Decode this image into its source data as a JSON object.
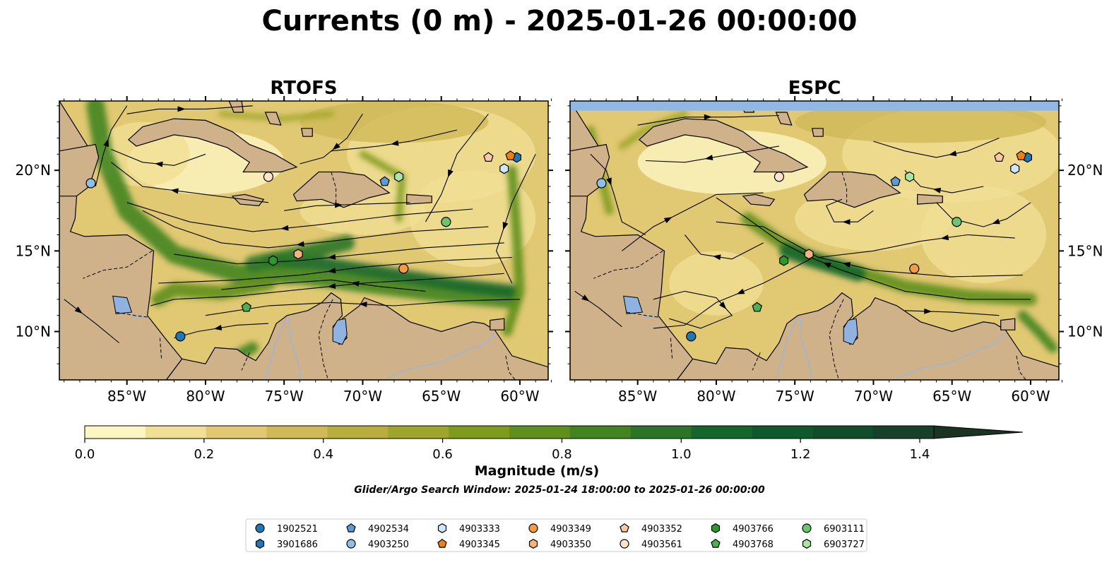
{
  "figure": {
    "title": "Currents (0 m) - 2025-01-26 00:00:00",
    "search_window": "Glider/Argo Search Window: 2025-01-24 18:00:00 to 2025-01-26 00:00:00"
  },
  "colors": {
    "land": "#cfb28a",
    "lake": "#8fb2e0",
    "river": "#9bb6d8",
    "missing_data": "#91b8e3",
    "streamline": "#000000",
    "magnitude_scale": [
      "#fdf6c2",
      "#f0df94",
      "#e1c873",
      "#d0b957",
      "#b9ad3f",
      "#9da62a",
      "#7f9b1d",
      "#5f8f1c",
      "#428420",
      "#2a7527",
      "#15662b",
      "#0e5a2c",
      "#124d2b",
      "#17402a",
      "#1b3322"
    ]
  },
  "map": {
    "extent": {
      "lon_min": -89.3,
      "lon_max": -58.2,
      "lat_min": 7.0,
      "lat_max": 24.3
    },
    "lon_ticks": [
      {
        "value": -85,
        "label": "85°W"
      },
      {
        "value": -80,
        "label": "80°W"
      },
      {
        "value": -75,
        "label": "75°W"
      },
      {
        "value": -70,
        "label": "70°W"
      },
      {
        "value": -65,
        "label": "65°W"
      },
      {
        "value": -60,
        "label": "60°W"
      }
    ],
    "lat_ticks": [
      {
        "value": 10,
        "label": "10°N"
      },
      {
        "value": 15,
        "label": "15°N"
      },
      {
        "value": 20,
        "label": "20°N"
      }
    ]
  },
  "panels": [
    {
      "id": "rtofs",
      "title": "RTOFS",
      "model": "rtofs"
    },
    {
      "id": "espc",
      "title": "ESPC",
      "model": "espc",
      "missing_band_lat_min": 23.7
    }
  ],
  "colorbar": {
    "label": "Magnitude (m/s)",
    "min": 0.0,
    "max": 1.5,
    "extend": "max",
    "ticks": [
      {
        "value": 0.0,
        "label": "0.0"
      },
      {
        "value": 0.2,
        "label": "0.2"
      },
      {
        "value": 0.4,
        "label": "0.4"
      },
      {
        "value": 0.6,
        "label": "0.6"
      },
      {
        "value": 0.8,
        "label": "0.8"
      },
      {
        "value": 1.0,
        "label": "1.0"
      },
      {
        "value": 1.2,
        "label": "1.2"
      },
      {
        "value": 1.4,
        "label": "1.4"
      }
    ]
  },
  "platforms": [
    {
      "id": "1902521",
      "marker": "circle",
      "color": "#1f77b4",
      "lon": -81.6,
      "lat": 9.7
    },
    {
      "id": "3901686",
      "marker": "hexagon",
      "color": "#1f77b4",
      "lon": -60.2,
      "lat": 20.8
    },
    {
      "id": "4902534",
      "marker": "pentagon",
      "color": "#5b9bd5",
      "lon": -68.6,
      "lat": 19.3
    },
    {
      "id": "4903250",
      "marker": "circle",
      "color": "#8fbfe8",
      "lon": -87.3,
      "lat": 19.2
    },
    {
      "id": "4903333",
      "marker": "hexagon",
      "color": "#cfe6fa",
      "lon": -61.0,
      "lat": 20.1
    },
    {
      "id": "4903345",
      "marker": "pentagon",
      "color": "#f07f15",
      "lon": -60.6,
      "lat": 20.9
    },
    {
      "id": "4903349",
      "marker": "circle",
      "color": "#f59a45",
      "lon": -67.4,
      "lat": 13.9
    },
    {
      "id": "4903350",
      "marker": "hexagon",
      "color": "#f9b27a",
      "lon": -74.1,
      "lat": 14.8
    },
    {
      "id": "4903352",
      "marker": "pentagon",
      "color": "#fbc8a2",
      "lon": -62.0,
      "lat": 20.8
    },
    {
      "id": "4903561",
      "marker": "circle",
      "color": "#fde3cc",
      "lon": -76.0,
      "lat": 19.6
    },
    {
      "id": "4903766",
      "marker": "hexagon",
      "color": "#2b9a2b",
      "lon": -75.7,
      "lat": 14.4
    },
    {
      "id": "4903768",
      "marker": "pentagon",
      "color": "#4cb04c",
      "lon": -77.4,
      "lat": 11.5
    },
    {
      "id": "6903111",
      "marker": "circle",
      "color": "#6cc46c",
      "lon": -64.7,
      "lat": 16.8
    },
    {
      "id": "6903727",
      "marker": "hexagon",
      "color": "#a9e6a3",
      "lon": -67.7,
      "lat": 19.6
    }
  ]
}
